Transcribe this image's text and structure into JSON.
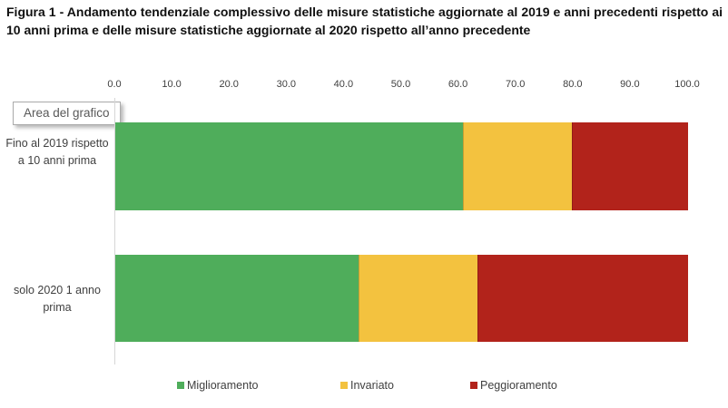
{
  "title": "Figura 1 - Andamento tendenziale complessivo delle misure statistiche aggiornate al 2019 e anni precedenti rispetto ai 10 anni prima e delle misure statistiche aggiornate al 2020 rispetto all’anno precedente",
  "tooltip_label": "Area del grafico",
  "chart_data": {
    "type": "bar",
    "orientation": "horizontal",
    "stacked": true,
    "grid": false,
    "legend_position": "bottom",
    "xlim": [
      0,
      100
    ],
    "x_ticks": [
      "0.0",
      "10.0",
      "20.0",
      "30.0",
      "40.0",
      "50.0",
      "60.0",
      "70.0",
      "80.0",
      "90.0",
      "100.0"
    ],
    "categories": [
      "Fino al 2019 rispetto a 10 anni prima",
      "solo 2020 1 anno prima"
    ],
    "series": [
      {
        "name": "Miglioramento",
        "color": "#4FAD5B",
        "values": [
          60.7,
          42.5
        ]
      },
      {
        "name": "Invariato",
        "color": "#F3C23F",
        "values": [
          19.0,
          20.7
        ]
      },
      {
        "name": "Peggioramento",
        "color": "#B2231B",
        "values": [
          20.3,
          36.8
        ]
      }
    ]
  }
}
